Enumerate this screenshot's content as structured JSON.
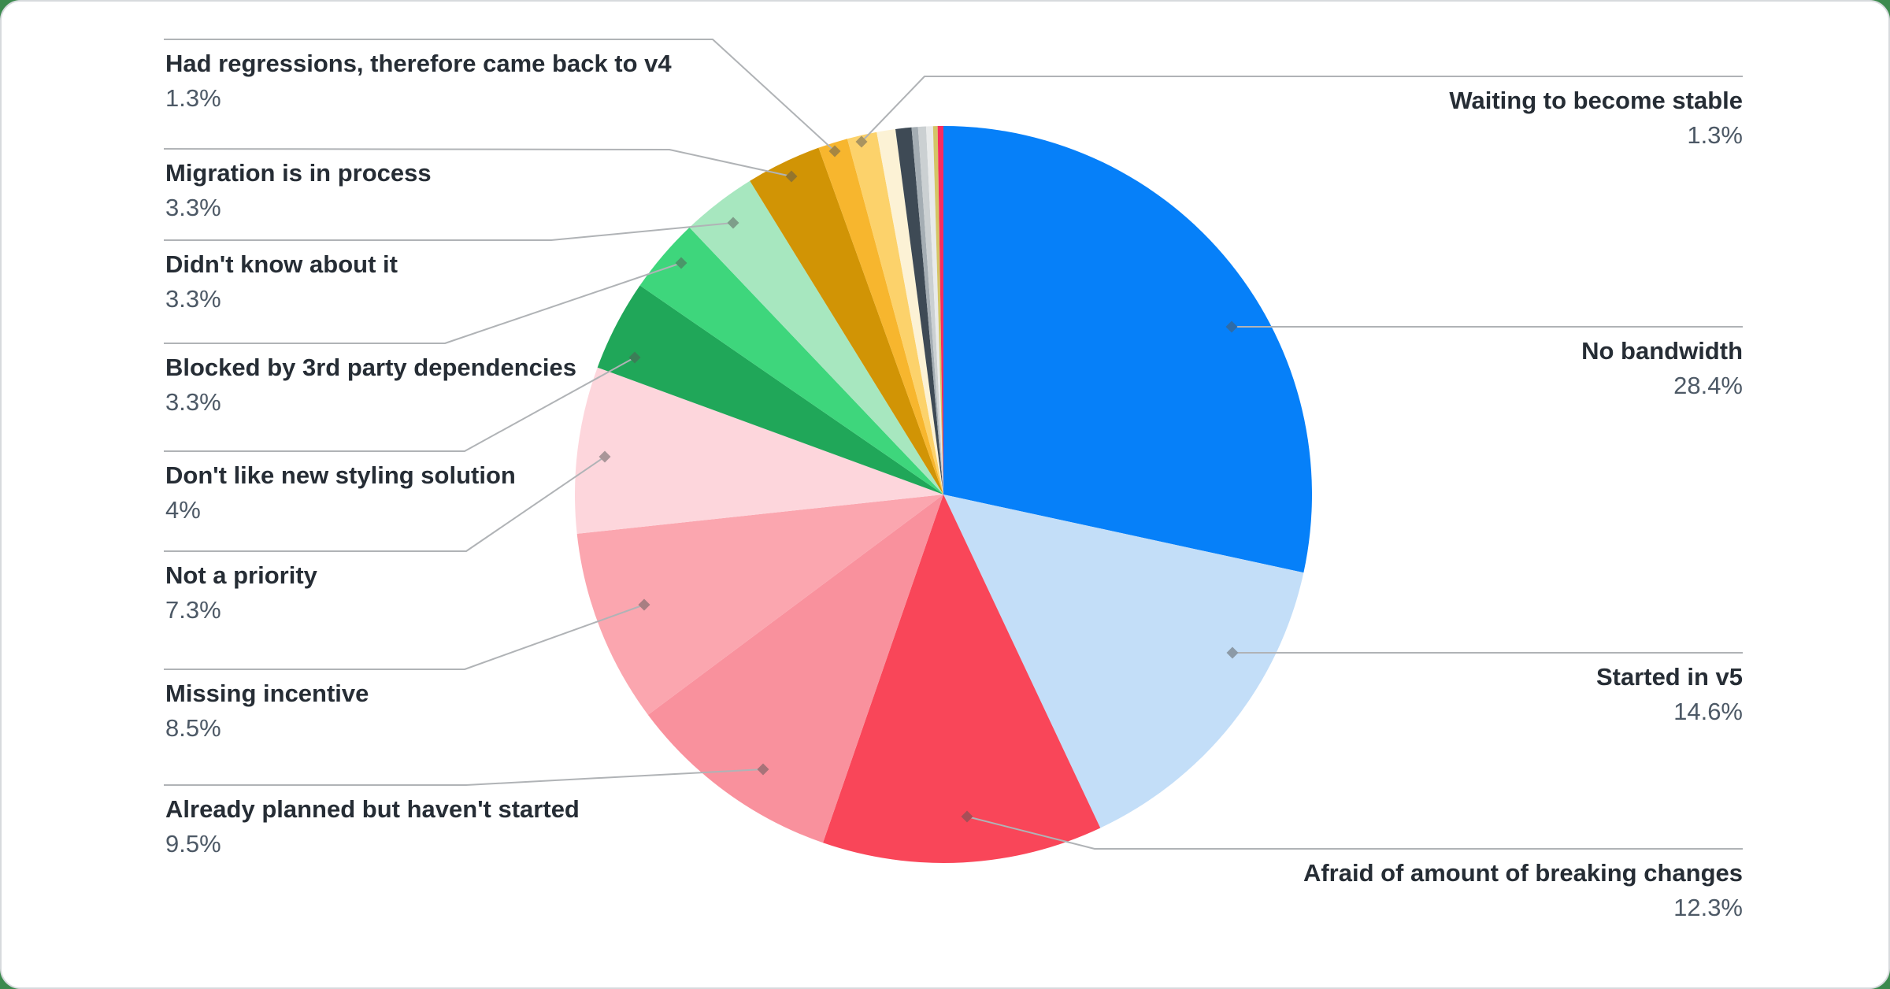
{
  "page": {
    "background_color": "#3c8a4e",
    "card_color": "#ffffff"
  },
  "chart_data": {
    "type": "pie",
    "legend_position": "callout-labels",
    "start_angle_deg": 0,
    "direction": "clockwise",
    "slices": [
      {
        "label": "No bandwidth",
        "value": 28.4,
        "display_pct": "28.4%",
        "color": "#0680f9"
      },
      {
        "label": "Started in v5",
        "value": 14.6,
        "display_pct": "14.6%",
        "color": "#c3def8"
      },
      {
        "label": "Afraid of amount of breaking changes",
        "value": 12.3,
        "display_pct": "12.3%",
        "color": "#f94659"
      },
      {
        "label": "Already planned but haven't started",
        "value": 9.5,
        "display_pct": "9.5%",
        "color": "#f9919d"
      },
      {
        "label": "Missing incentive",
        "value": 8.5,
        "display_pct": "8.5%",
        "color": "#fba6af"
      },
      {
        "label": "Not a priority",
        "value": 7.3,
        "display_pct": "7.3%",
        "color": "#fdd6dc"
      },
      {
        "label": "Don't like new styling solution",
        "value": 4,
        "display_pct": "4%",
        "color": "#20a759"
      },
      {
        "label": "Blocked by 3rd party dependencies",
        "value": 3.3,
        "display_pct": "3.3%",
        "color": "#3ed67c"
      },
      {
        "label": "Didn't know about it",
        "value": 3.3,
        "display_pct": "3.3%",
        "color": "#a7e7bf"
      },
      {
        "label": "Migration is in process",
        "value": 3.3,
        "display_pct": "3.3%",
        "color": "#d19405"
      },
      {
        "label": "Had regressions, therefore came back to v4",
        "value": 1.3,
        "display_pct": "1.3%",
        "color": "#f7b62e"
      },
      {
        "label": "Waiting to become stable",
        "value": 1.3,
        "display_pct": "1.3%",
        "color": "#fcd26b"
      },
      {
        "label": null,
        "value": 0.82,
        "display_pct": null,
        "color": "#fcf2d5"
      },
      {
        "label": null,
        "value": 0.7,
        "display_pct": null,
        "color": "#3e4a55"
      },
      {
        "label": null,
        "value": 0.28,
        "display_pct": null,
        "color": "#a4adb3"
      },
      {
        "label": null,
        "value": 0.35,
        "display_pct": null,
        "color": "#cbd0d2"
      },
      {
        "label": null,
        "value": 0.3,
        "display_pct": null,
        "color": "#e8eaea"
      },
      {
        "label": null,
        "value": 0.2,
        "display_pct": null,
        "color": "#d4c566"
      },
      {
        "label": null,
        "value": 0.25,
        "display_pct": null,
        "color": "#f72c5f"
      }
    ]
  }
}
